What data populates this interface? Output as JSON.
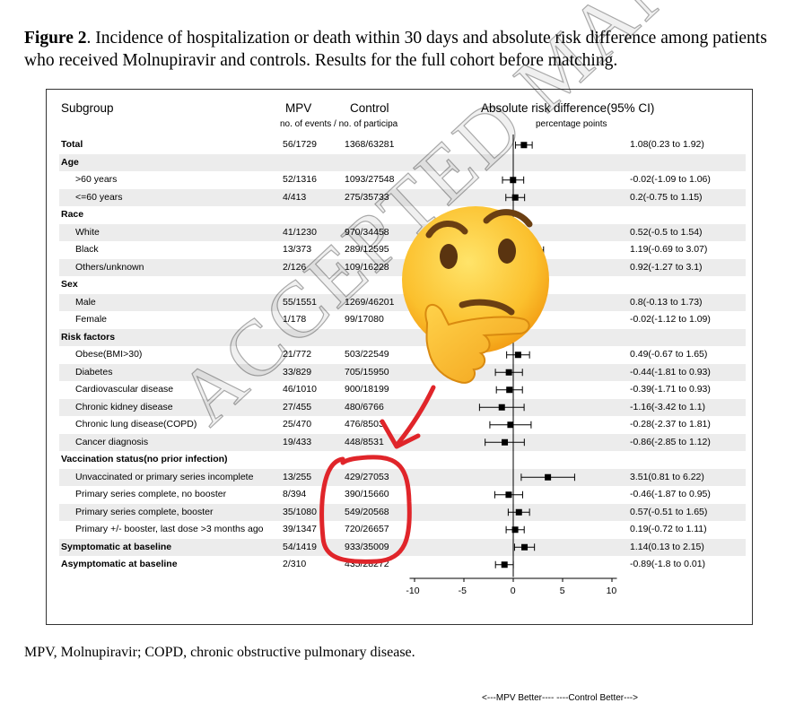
{
  "caption": {
    "label": "Figure 2",
    "text": ". Incidence of hospitalization or death within 30 days and absolute risk difference among patients who received Molnupiravir and controls. Results for the full cohort before matching."
  },
  "footnote": "MPV, Molnupiravir; COPD, chronic obstructive pulmonary disease.",
  "watermark": "ACCEPTED MANUSCRIPT",
  "emoji_icon": "thinking-face-icon",
  "annotation_color": "#e0252a",
  "table": {
    "headers": {
      "subgroup": "Subgroup",
      "mpv": "MPV",
      "control": "Control",
      "effect": "Absolute risk difference(95% CI)",
      "sub_counts": "no. of events / no. of participa",
      "sub_effect": "percentage points"
    }
  },
  "chart_data": {
    "type": "scatter",
    "subtype": "forest-plot",
    "xlabel": "<---MPV  Better----  ----Control Better--->",
    "xlim": [
      -10.5,
      10.5
    ],
    "xticks": [
      "-10",
      "-5",
      "0",
      "5",
      "10"
    ],
    "reference_line": 0,
    "rows": [
      {
        "label": "Total",
        "kind": "total",
        "mpv": "56/1729",
        "control": "1368/63281",
        "ci": "1.08(0.23 to 1.92)",
        "est": 1.08,
        "lo": 0.23,
        "hi": 1.92
      },
      {
        "label": "Age",
        "kind": "header"
      },
      {
        "label": ">60 years",
        "kind": "sub",
        "mpv": "52/1316",
        "control": "1093/27548",
        "ci": "-0.02(-1.09 to 1.06)",
        "est": -0.02,
        "lo": -1.09,
        "hi": 1.06
      },
      {
        "label": "<=60 years",
        "kind": "sub",
        "mpv": "4/413",
        "control": "275/35733",
        "ci": "0.2(-0.75 to 1.15)",
        "est": 0.2,
        "lo": -0.75,
        "hi": 1.15
      },
      {
        "label": "Race",
        "kind": "header"
      },
      {
        "label": "White",
        "kind": "sub",
        "mpv": "41/1230",
        "control": "970/34458",
        "ci": "0.52(-0.5 to 1.54)",
        "est": 0.52,
        "lo": -0.5,
        "hi": 1.54
      },
      {
        "label": "Black",
        "kind": "sub",
        "mpv": "13/373",
        "control": "289/12595",
        "ci": "1.19(-0.69 to 3.07)",
        "est": 1.19,
        "lo": -0.69,
        "hi": 3.07
      },
      {
        "label": "Others/unknown",
        "kind": "sub",
        "mpv": "2/126",
        "control": "109/16228",
        "ci": "0.92(-1.27 to 3.1)",
        "est": 0.92,
        "lo": -1.27,
        "hi": 3.1
      },
      {
        "label": "Sex",
        "kind": "header"
      },
      {
        "label": "Male",
        "kind": "sub",
        "mpv": "55/1551",
        "control": "1269/46201",
        "ci": "0.8(-0.13 to 1.73)",
        "est": 0.8,
        "lo": -0.13,
        "hi": 1.73
      },
      {
        "label": "Female",
        "kind": "sub",
        "mpv": "1/178",
        "control": "99/17080",
        "ci": "-0.02(-1.12 to 1.09)",
        "est": -0.02,
        "lo": -1.12,
        "hi": 1.09
      },
      {
        "label": "Risk factors",
        "kind": "header"
      },
      {
        "label": "Obese(BMI>30)",
        "kind": "sub",
        "mpv": "21/772",
        "control": "503/22549",
        "ci": "0.49(-0.67 to 1.65)",
        "est": 0.49,
        "lo": -0.67,
        "hi": 1.65
      },
      {
        "label": "Diabetes",
        "kind": "sub",
        "mpv": "33/829",
        "control": "705/15950",
        "ci": "-0.44(-1.81 to 0.93)",
        "est": -0.44,
        "lo": -1.81,
        "hi": 0.93
      },
      {
        "label": "Cardiovascular disease",
        "kind": "sub",
        "mpv": "46/1010",
        "control": "900/18199",
        "ci": "-0.39(-1.71 to 0.93)",
        "est": -0.39,
        "lo": -1.71,
        "hi": 0.93
      },
      {
        "label": "Chronic kidney disease",
        "kind": "sub",
        "mpv": "27/455",
        "control": "480/6766",
        "ci": "-1.16(-3.42 to 1.1)",
        "est": -1.16,
        "lo": -3.42,
        "hi": 1.1
      },
      {
        "label": "Chronic lung disease(COPD)",
        "kind": "sub",
        "mpv": "25/470",
        "control": "476/8503",
        "ci": "-0.28(-2.37 to 1.81)",
        "est": -0.28,
        "lo": -2.37,
        "hi": 1.81
      },
      {
        "label": "Cancer diagnosis",
        "kind": "sub",
        "mpv": "19/433",
        "control": "448/8531",
        "ci": "-0.86(-2.85 to 1.12)",
        "est": -0.86,
        "lo": -2.85,
        "hi": 1.12
      },
      {
        "label": "Vaccination status(no prior infection)",
        "kind": "header"
      },
      {
        "label": "Unvaccinated or primary series incomplete",
        "kind": "sub",
        "mpv": "13/255",
        "control": "429/27053",
        "ci": "3.51(0.81 to 6.22)",
        "est": 3.51,
        "lo": 0.81,
        "hi": 6.22
      },
      {
        "label": "Primary series complete, no booster",
        "kind": "sub",
        "mpv": "8/394",
        "control": "390/15660",
        "ci": "-0.46(-1.87 to 0.95)",
        "est": -0.46,
        "lo": -1.87,
        "hi": 0.95
      },
      {
        "label": "Primary series complete, booster",
        "kind": "sub",
        "mpv": "35/1080",
        "control": "549/20568",
        "ci": "0.57(-0.51 to 1.65)",
        "est": 0.57,
        "lo": -0.51,
        "hi": 1.65
      },
      {
        "label": "Primary +/- booster, last dose >3 months ago",
        "kind": "sub",
        "mpv": "39/1347",
        "control": "720/26657",
        "ci": "0.19(-0.72 to 1.11)",
        "est": 0.19,
        "lo": -0.72,
        "hi": 1.11
      },
      {
        "label": "Symptomatic at baseline",
        "kind": "total",
        "mpv": "54/1419",
        "control": "933/35009",
        "ci": "1.14(0.13 to 2.15)",
        "est": 1.14,
        "lo": 0.13,
        "hi": 2.15
      },
      {
        "label": "Asymptomatic at baseline",
        "kind": "total",
        "mpv": "2/310",
        "control": "435/28272",
        "ci": "-0.89(-1.8 to 0.01)",
        "est": -0.89,
        "lo": -1.8,
        "hi": 0.01
      }
    ]
  }
}
